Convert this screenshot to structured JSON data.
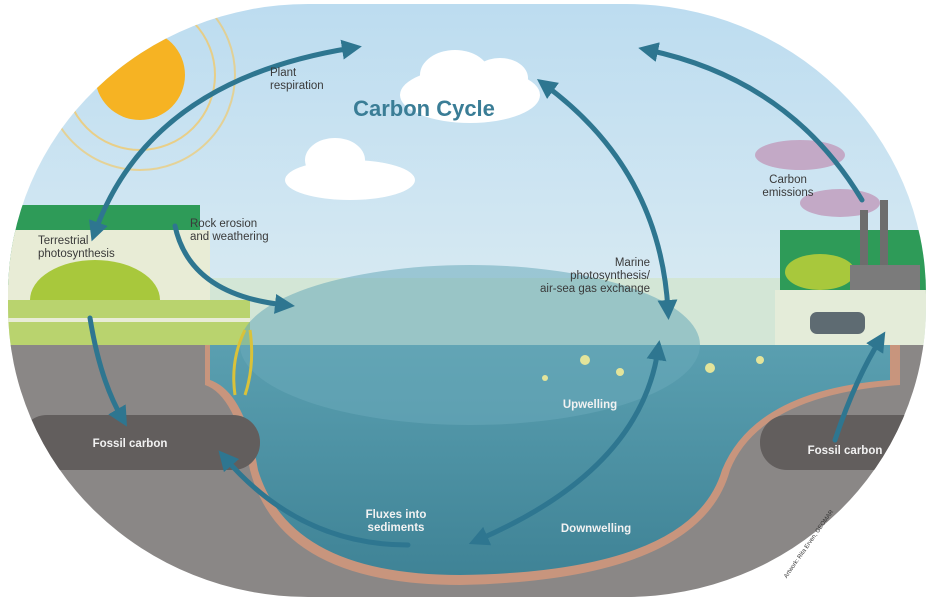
{
  "title": "Carbon Cycle",
  "labels": [
    {
      "lines": [
        "Plant",
        "respiration"
      ]
    },
    {
      "lines": [
        "Terrestrial",
        "photosynthesis"
      ]
    },
    {
      "lines": [
        "Rock erosion",
        "and weathering"
      ]
    },
    {
      "lines": [
        "Marine",
        "photosynthesis/",
        "air-sea gas exchange"
      ]
    },
    {
      "lines": [
        "Carbon",
        "emissions"
      ]
    },
    {
      "lines": [
        "Upwelling"
      ]
    },
    {
      "lines": [
        "Downwelling"
      ]
    },
    {
      "lines": [
        "Fluxes into",
        "sediments"
      ]
    },
    {
      "lines": [
        "Fossil carbon"
      ]
    },
    {
      "lines": [
        "Fossil carbon"
      ]
    }
  ],
  "credit": "Artwork: Rita Erven, GEOMAR"
}
